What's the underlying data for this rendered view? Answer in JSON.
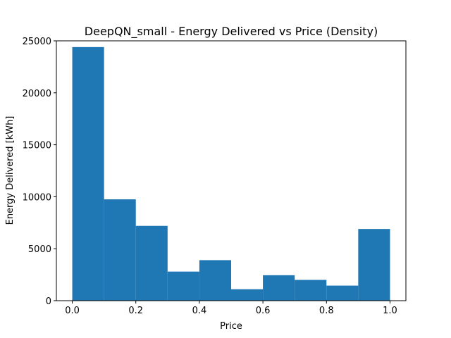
{
  "chart_data": {
    "type": "bar",
    "title": "DeepQN_small - Energy Delivered vs Price (Density)",
    "xlabel": "Price",
    "ylabel": "Energy Delivered [kWh]",
    "bins": [
      {
        "x0": 0.0,
        "x1": 0.1,
        "value": 24400
      },
      {
        "x0": 0.1,
        "x1": 0.2,
        "value": 9750
      },
      {
        "x0": 0.2,
        "x1": 0.3,
        "value": 7200
      },
      {
        "x0": 0.3,
        "x1": 0.4,
        "value": 2800
      },
      {
        "x0": 0.4,
        "x1": 0.5,
        "value": 3900
      },
      {
        "x0": 0.5,
        "x1": 0.6,
        "value": 1100
      },
      {
        "x0": 0.6,
        "x1": 0.7,
        "value": 2450
      },
      {
        "x0": 0.7,
        "x1": 0.8,
        "value": 2000
      },
      {
        "x0": 0.8,
        "x1": 0.9,
        "value": 1450
      },
      {
        "x0": 0.9,
        "x1": 1.0,
        "value": 6900
      }
    ],
    "xlim": [
      -0.05,
      1.05
    ],
    "ylim": [
      0,
      25000
    ],
    "xticks": [
      0.0,
      0.2,
      0.4,
      0.6,
      0.8,
      1.0
    ],
    "xtick_labels": [
      "0.0",
      "0.2",
      "0.4",
      "0.6",
      "0.8",
      "1.0"
    ],
    "yticks": [
      0,
      5000,
      10000,
      15000,
      20000,
      25000
    ],
    "ytick_labels": [
      "0",
      "5000",
      "10000",
      "15000",
      "20000",
      "25000"
    ],
    "bar_color": "#1f77b4",
    "grid": false
  }
}
